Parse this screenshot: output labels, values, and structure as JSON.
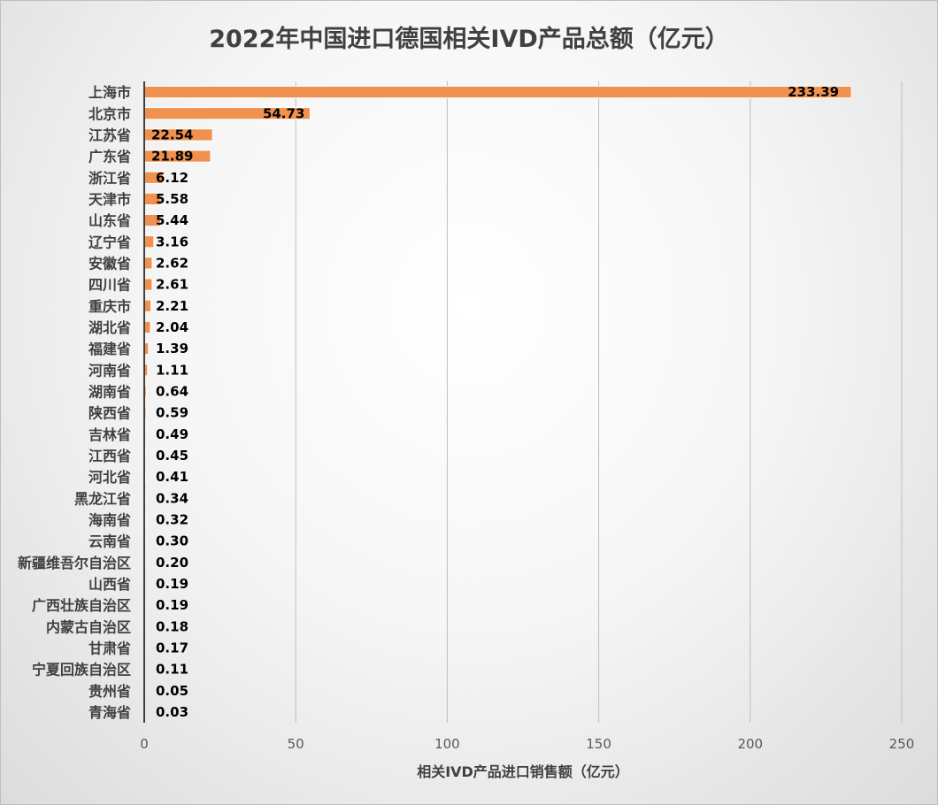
{
  "chart_data": {
    "type": "bar",
    "orientation": "horizontal",
    "title": "2022年中国进口德国相关IVD产品总额（亿元）",
    "xlabel": "相关IVD产品进口销售额（亿元）",
    "ylabel": "",
    "xlim": [
      0,
      250
    ],
    "xticks": [
      0,
      50,
      100,
      150,
      200,
      250
    ],
    "grid": "vertical",
    "legend": "none",
    "bar_color": "#f0914f",
    "categories": [
      "上海市",
      "北京市",
      "江苏省",
      "广东省",
      "浙江省",
      "天津市",
      "山东省",
      "辽宁省",
      "安徽省",
      "四川省",
      "重庆市",
      "湖北省",
      "福建省",
      "河南省",
      "湖南省",
      "陕西省",
      "吉林省",
      "江西省",
      "河北省",
      "黑龙江省",
      "海南省",
      "云南省",
      "新疆维吾尔自治区",
      "山西省",
      "广西壮族自治区",
      "内蒙古自治区",
      "甘肃省",
      "宁夏回族自治区",
      "贵州省",
      "青海省"
    ],
    "values": [
      233.39,
      54.73,
      22.54,
      21.89,
      6.12,
      5.58,
      5.44,
      3.16,
      2.62,
      2.61,
      2.21,
      2.04,
      1.39,
      1.11,
      0.64,
      0.59,
      0.49,
      0.45,
      0.41,
      0.34,
      0.32,
      0.3,
      0.2,
      0.19,
      0.19,
      0.18,
      0.17,
      0.11,
      0.05,
      0.03
    ],
    "value_labels": [
      "233.39",
      "54.73",
      "22.54",
      "21.89",
      "6.12",
      "5.58",
      "5.44",
      "3.16",
      "2.62",
      "2.61",
      "2.21",
      "2.04",
      "1.39",
      "1.11",
      "0.64",
      "0.59",
      "0.49",
      "0.45",
      "0.41",
      "0.34",
      "0.32",
      "0.30",
      "0.20",
      "0.19",
      "0.19",
      "0.18",
      "0.17",
      "0.11",
      "0.05",
      "0.03"
    ]
  }
}
